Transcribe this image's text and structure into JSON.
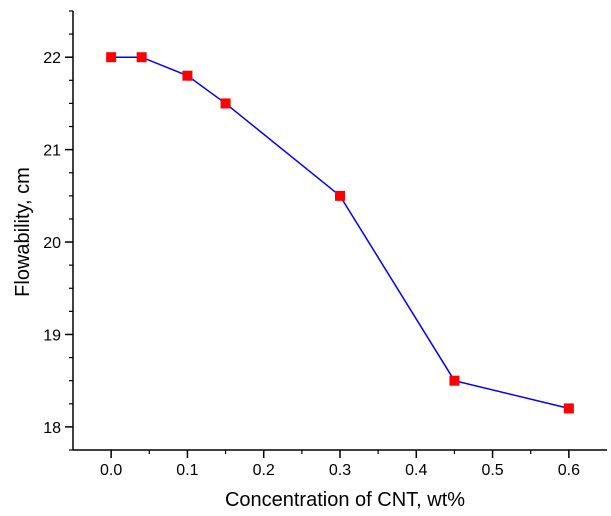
{
  "chart_data": {
    "type": "line",
    "title": "",
    "xlabel": "Concentration of CNT, wt%",
    "ylabel": "Flowability, cm",
    "xlim": [
      -0.05,
      0.65
    ],
    "ylim": [
      17.75,
      22.5
    ],
    "x_ticks": [
      0.0,
      0.1,
      0.2,
      0.3,
      0.4,
      0.5,
      0.6
    ],
    "x_tick_labels": [
      "0.0",
      "0.1",
      "0.2",
      "0.3",
      "0.4",
      "0.5",
      "0.6"
    ],
    "y_ticks": [
      18,
      19,
      20,
      21,
      22
    ],
    "y_tick_labels": [
      "18",
      "19",
      "20",
      "21",
      "22"
    ],
    "grid": false,
    "legend": "none",
    "line_color": "#0000ff",
    "marker_color": "#ff0000",
    "marker": "square",
    "series": [
      {
        "x": [
          0.0,
          0.04,
          0.1,
          0.15,
          0.3,
          0.45,
          0.6
        ],
        "y": [
          22.0,
          22.0,
          21.8,
          21.5,
          20.5,
          18.5,
          18.2
        ]
      }
    ]
  }
}
